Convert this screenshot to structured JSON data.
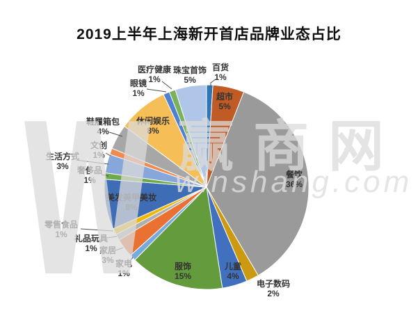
{
  "title": "2019上半年上海新开首店品牌业态占比",
  "watermark": {
    "mark": "W",
    "brand": "赢商网",
    "site": "winshang.com"
  },
  "chart_data": {
    "type": "pie",
    "title": "2019上半年上海新开首店品牌业态占比",
    "unit": "%",
    "direction": "clockwise",
    "start_angle_deg": 0,
    "legend": "none",
    "label_style": "category name + percent; large slices labeled inside, small slices outside with leader lines",
    "categories": [
      "百货",
      "超市",
      "餐饮",
      "电子数码",
      "儿童",
      "服饰",
      "家电",
      "家居",
      "礼品玩具",
      "零售食品",
      "美发美甲美妆",
      "奢侈品",
      "生活方式",
      "文创",
      "鞋履箱包",
      "休闲娱乐",
      "眼镜",
      "医疗健康",
      "珠宝首饰"
    ],
    "values": [
      1,
      5,
      36,
      2,
      4,
      15,
      1,
      3,
      1,
      1,
      8,
      1,
      3,
      1,
      4,
      8,
      1,
      1,
      5
    ],
    "colors": [
      "#2E75B6",
      "#C05B25",
      "#9A9A9A",
      "#CC9A11",
      "#4070BE",
      "#649B3D",
      "#76AADC",
      "#E97132",
      "#AFAFAF",
      "#F2B800",
      "#3E6DB5",
      "#6CAB47",
      "#87A7DA",
      "#EF8B50",
      "#A7A7A7",
      "#F6BE56",
      "#4F81D0",
      "#7CB15C",
      "#AFC6E8"
    ]
  }
}
